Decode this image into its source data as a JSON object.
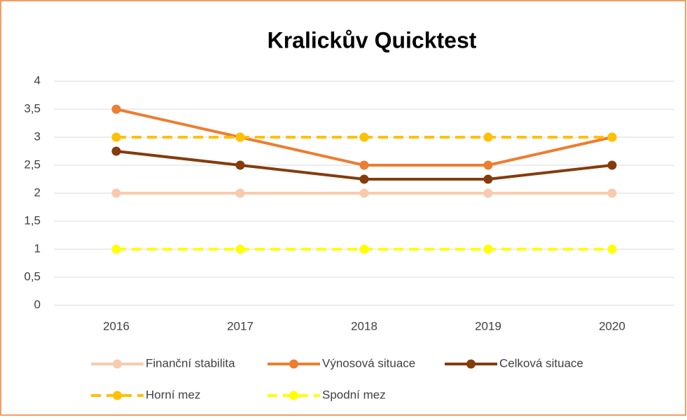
{
  "chart_data": {
    "type": "line",
    "title": "Kralickův Quicktest",
    "categories": [
      "2016",
      "2017",
      "2018",
      "2019",
      "2020"
    ],
    "series": [
      {
        "name": "Finanční stabilita",
        "color": "#f8cbad",
        "values": [
          2,
          2,
          2,
          2,
          2
        ]
      },
      {
        "name": "Výnosová situace",
        "color": "#ed7d31",
        "values": [
          3.5,
          3,
          2.5,
          2.5,
          3
        ]
      },
      {
        "name": "Celková situace",
        "color": "#843c0c",
        "values": [
          2.75,
          2.5,
          2.25,
          2.25,
          2.5
        ]
      },
      {
        "name": "Horní mez",
        "color": "#ffc000",
        "dashed": true,
        "values": [
          3,
          3,
          3,
          3,
          3
        ]
      },
      {
        "name": "Spodní mez",
        "color": "#ffff00",
        "dashed": true,
        "values": [
          1,
          1,
          1,
          1,
          1
        ]
      }
    ],
    "ylim": [
      0,
      4
    ],
    "yticks": [
      0,
      {
        "value": 0.5,
        "label": "0,5"
      },
      1,
      {
        "value": 1.5,
        "label": "1,5"
      },
      2,
      {
        "value": 2.5,
        "label": "2,5"
      },
      3,
      {
        "value": 3.5,
        "label": "3,5"
      },
      4
    ],
    "grid": true,
    "legend": "bottom"
  }
}
